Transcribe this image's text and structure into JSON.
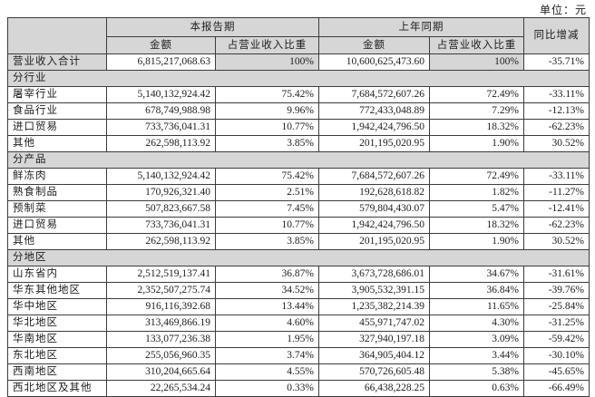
{
  "unit_label": "单位：元",
  "colors": {
    "header_fill": "#d6d6d6",
    "border": "#3c3c3c",
    "text": "#1d1d1d",
    "background": "#ffffff"
  },
  "table": {
    "headers": {
      "current_period": "本报告期",
      "prior_period": "上年同期",
      "yoy": "同比增减",
      "amount": "金额",
      "pct_of_revenue": "占营业收入比重"
    },
    "total_row": {
      "label": "营业收入合计",
      "cur_amount": "6,815,217,068.63",
      "cur_pct": "100%",
      "prior_amount": "10,600,625,473.60",
      "prior_pct": "100%",
      "yoy": "-35.71%"
    },
    "sections": [
      {
        "title": "分行业",
        "rows": [
          {
            "label": "屠宰行业",
            "cur_amount": "5,140,132,924.42",
            "cur_pct": "75.42%",
            "prior_amount": "7,684,572,607.26",
            "prior_pct": "72.49%",
            "yoy": "-33.11%"
          },
          {
            "label": "食品行业",
            "cur_amount": "678,749,988.98",
            "cur_pct": "9.96%",
            "prior_amount": "772,433,048.89",
            "prior_pct": "7.29%",
            "yoy": "-12.13%"
          },
          {
            "label": "进口贸易",
            "cur_amount": "733,736,041.31",
            "cur_pct": "10.77%",
            "prior_amount": "1,942,424,796.50",
            "prior_pct": "18.32%",
            "yoy": "-62.23%"
          },
          {
            "label": "其他",
            "cur_amount": "262,598,113.92",
            "cur_pct": "3.85%",
            "prior_amount": "201,195,020.95",
            "prior_pct": "1.90%",
            "yoy": "30.52%"
          }
        ]
      },
      {
        "title": "分产品",
        "rows": [
          {
            "label": "鲜冻肉",
            "cur_amount": "5,140,132,924.42",
            "cur_pct": "75.42%",
            "prior_amount": "7,684,572,607.26",
            "prior_pct": "72.49%",
            "yoy": "-33.11%"
          },
          {
            "label": "熟食制品",
            "cur_amount": "170,926,321.40",
            "cur_pct": "2.51%",
            "prior_amount": "192,628,618.82",
            "prior_pct": "1.82%",
            "yoy": "-11.27%"
          },
          {
            "label": "预制菜",
            "cur_amount": "507,823,667.58",
            "cur_pct": "7.45%",
            "prior_amount": "579,804,430.07",
            "prior_pct": "5.47%",
            "yoy": "-12.41%"
          },
          {
            "label": "进口贸易",
            "cur_amount": "733,736,041.31",
            "cur_pct": "10.77%",
            "prior_amount": "1,942,424,796.50",
            "prior_pct": "18.32%",
            "yoy": "-62.23%"
          },
          {
            "label": "其他",
            "cur_amount": "262,598,113.92",
            "cur_pct": "3.85%",
            "prior_amount": "201,195,020.95",
            "prior_pct": "1.90%",
            "yoy": "30.52%"
          }
        ]
      },
      {
        "title": "分地区",
        "rows": [
          {
            "label": "山东省内",
            "cur_amount": "2,512,519,137.41",
            "cur_pct": "36.87%",
            "prior_amount": "3,673,728,686.01",
            "prior_pct": "34.67%",
            "yoy": "-31.61%"
          },
          {
            "label": "华东其他地区",
            "cur_amount": "2,352,507,275.74",
            "cur_pct": "34.52%",
            "prior_amount": "3,905,532,391.15",
            "prior_pct": "36.84%",
            "yoy": "-39.76%"
          },
          {
            "label": "华中地区",
            "cur_amount": "916,116,392.68",
            "cur_pct": "13.44%",
            "prior_amount": "1,235,382,214.39",
            "prior_pct": "11.65%",
            "yoy": "-25.84%"
          },
          {
            "label": "华北地区",
            "cur_amount": "313,469,866.19",
            "cur_pct": "4.60%",
            "prior_amount": "455,971,747.02",
            "prior_pct": "4.30%",
            "yoy": "-31.25%"
          },
          {
            "label": "华南地区",
            "cur_amount": "133,077,236.38",
            "cur_pct": "1.95%",
            "prior_amount": "327,940,197.18",
            "prior_pct": "3.09%",
            "yoy": "-59.42%"
          },
          {
            "label": "东北地区",
            "cur_amount": "255,056,960.35",
            "cur_pct": "3.74%",
            "prior_amount": "364,905,404.12",
            "prior_pct": "3.44%",
            "yoy": "-30.10%"
          },
          {
            "label": "西南地区",
            "cur_amount": "310,204,665.64",
            "cur_pct": "4.55%",
            "prior_amount": "570,726,605.48",
            "prior_pct": "5.38%",
            "yoy": "-45.65%"
          },
          {
            "label": "西北地区及其他",
            "cur_amount": "22,265,534.24",
            "cur_pct": "0.33%",
            "prior_amount": "66,438,228.25",
            "prior_pct": "0.63%",
            "yoy": "-66.49%"
          }
        ]
      }
    ]
  }
}
